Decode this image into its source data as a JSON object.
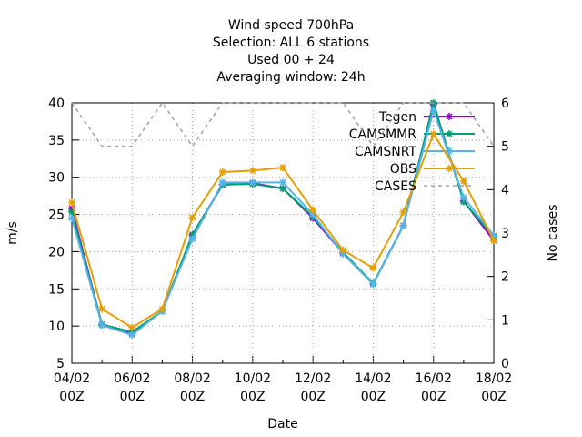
{
  "chart_data": {
    "type": "line",
    "title": [
      "Wind speed 700hPa",
      "Selection: ALL      6 stations",
      "Used  00 + 24",
      "Averaging window: 24h"
    ],
    "x_label": "Date",
    "y_label": "m/s",
    "y2_label": "No cases",
    "categories": [
      "04/02\n00Z",
      null,
      "06/02\n00Z",
      null,
      "08/02\n00Z",
      null,
      "10/02\n00Z",
      null,
      "12/02\n00Z",
      null,
      "14/02\n00Z",
      null,
      "16/02\n00Z",
      null,
      "18/02\n00Z"
    ],
    "ylim": [
      5,
      40
    ],
    "yticks": [
      5,
      10,
      15,
      20,
      25,
      30,
      35,
      40
    ],
    "y2lim": [
      0,
      6
    ],
    "y2ticks": [
      0,
      1,
      2,
      3,
      4,
      5,
      6
    ],
    "grid": true,
    "legend": "top-right",
    "series": [
      {
        "name": "Tegen",
        "color": "#9400d3",
        "values": [
          25.8,
          10.2,
          9.0,
          12.0,
          22.2,
          29.0,
          29.2,
          28.5,
          24.5,
          19.8,
          15.7,
          23.5,
          39.8,
          26.8,
          21.5
        ]
      },
      {
        "name": "CAMSMMR",
        "color": "#009e73",
        "values": [
          25.3,
          10.2,
          9.2,
          12.0,
          22.3,
          29.0,
          29.1,
          28.5,
          24.7,
          19.9,
          15.7,
          23.5,
          40.0,
          26.7,
          22.0
        ]
      },
      {
        "name": "CAMSNRT",
        "color": "#56b4e9",
        "values": [
          24.5,
          10.1,
          8.8,
          12.0,
          21.7,
          29.3,
          29.3,
          29.3,
          25.0,
          19.7,
          15.6,
          23.5,
          39.0,
          27.3,
          22.2
        ]
      },
      {
        "name": "OBS",
        "color": "#e69f00",
        "values": [
          26.6,
          12.3,
          9.8,
          12.3,
          24.6,
          30.7,
          30.9,
          31.3,
          25.6,
          20.2,
          17.8,
          25.3,
          35.8,
          29.5,
          21.5
        ]
      },
      {
        "name": "CASES",
        "color": "#a0a0a0",
        "axis": "y2",
        "dashed": true,
        "values": [
          6,
          5,
          5,
          6,
          5,
          6,
          6,
          6,
          6,
          6,
          5,
          6,
          6,
          6,
          5
        ]
      }
    ]
  }
}
